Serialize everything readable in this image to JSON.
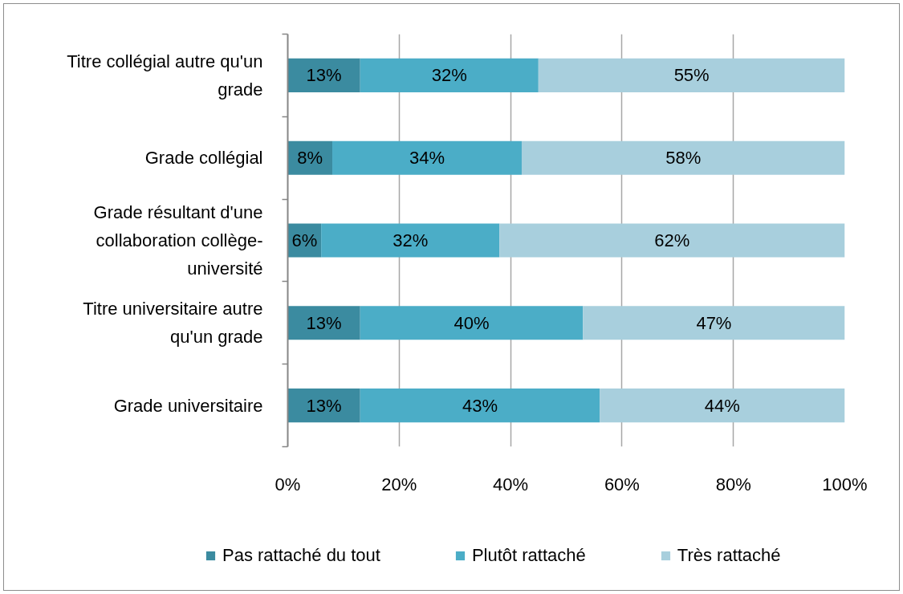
{
  "chart_data": {
    "type": "bar",
    "orientation": "horizontal",
    "stacked": true,
    "categories": [
      "Titre collégial autre qu'un grade",
      "Grade collégial",
      "Grade résultant d'une collaboration collège-université",
      "Titre universitaire autre qu'un grade",
      "Grade universitaire"
    ],
    "series": [
      {
        "name": "Pas rattaché du tout",
        "color": "#3b8ba0",
        "values": [
          13,
          8,
          6,
          13,
          13
        ],
        "value_labels": [
          "13%",
          "8%",
          "6%",
          "13%",
          "13%"
        ]
      },
      {
        "name": "Plutôt rattaché",
        "color": "#4badc7",
        "values": [
          32,
          34,
          32,
          40,
          43
        ],
        "value_labels": [
          "32%",
          "34%",
          "32%",
          "40%",
          "43%"
        ]
      },
      {
        "name": "Très rattaché",
        "color": "#a8cfdd",
        "values": [
          55,
          58,
          62,
          47,
          44
        ],
        "value_labels": [
          "55%",
          "58%",
          "62%",
          "47%",
          "44%"
        ]
      }
    ],
    "xlim": [
      0,
      100
    ],
    "xticks": [
      {
        "value": 0,
        "label": "0%"
      },
      {
        "value": 20,
        "label": "20%"
      },
      {
        "value": 40,
        "label": "40%"
      },
      {
        "value": 60,
        "label": "60%"
      },
      {
        "value": 80,
        "label": "80%"
      },
      {
        "value": 100,
        "label": "100%"
      }
    ],
    "grid": "x",
    "legend": "bottom"
  }
}
